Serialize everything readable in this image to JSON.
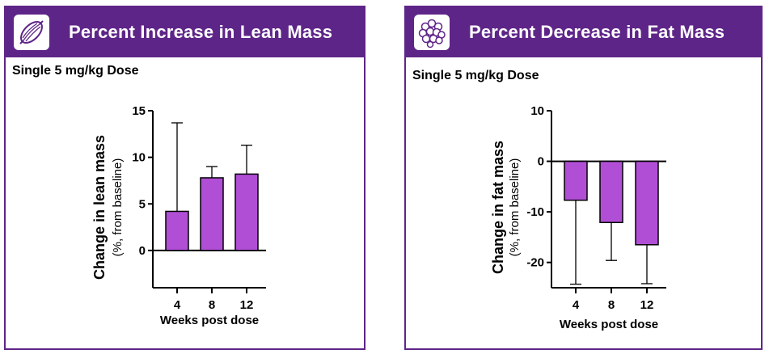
{
  "panels": [
    {
      "banner_title": "Percent Increase in Lean Mass",
      "banner_icon": "muscle-icon",
      "subtitle": "Single 5 mg/kg Dose"
    },
    {
      "banner_title": "Percent Decrease in Fat Mass",
      "banner_icon": "fat-cells-icon",
      "subtitle": "Single 5 mg/kg Dose"
    }
  ],
  "colors": {
    "banner": "#5e2588",
    "bar": "#b04fd6",
    "axis": "#000000"
  },
  "chart_data": [
    {
      "type": "bar",
      "title": "Percent Increase in Lean Mass",
      "categories": [
        "4",
        "8",
        "12"
      ],
      "values": [
        4.2,
        7.8,
        8.2
      ],
      "error_upper": [
        13.7,
        9.0,
        11.3
      ],
      "ylim": [
        -4,
        15
      ],
      "yticks": [
        0,
        5,
        10,
        15
      ],
      "xlabel": "Weeks post dose",
      "ylabel": "Change in lean mass",
      "ylabel_sub": "(%, from baseline)"
    },
    {
      "type": "bar",
      "title": "Percent Decrease in Fat Mass",
      "categories": [
        "4",
        "8",
        "12"
      ],
      "values": [
        -7.7,
        -12.1,
        -16.5
      ],
      "error_lower": [
        -24.3,
        -19.6,
        -24.2
      ],
      "ylim": [
        -25,
        10
      ],
      "yticks": [
        10,
        0,
        -10,
        -20
      ],
      "xlabel": "Weeks post dose",
      "ylabel": "Change in fat mass",
      "ylabel_sub": "(%, from baseline)"
    }
  ]
}
